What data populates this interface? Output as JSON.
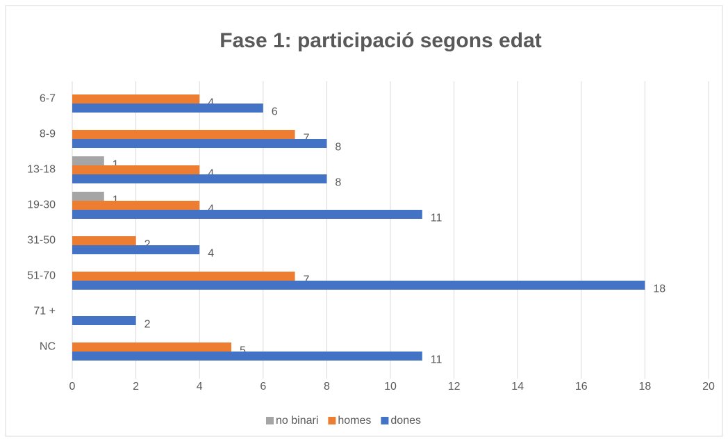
{
  "chart_data": {
    "type": "bar",
    "orientation": "horizontal",
    "title": "Fase 1: participació segons edat",
    "categories": [
      "6-7",
      "8-9",
      "13-18",
      "19-30",
      "31-50",
      "51-70",
      "71 +",
      "NC"
    ],
    "series": [
      {
        "name": "no binari",
        "color": "#a5a5a5",
        "values": [
          null,
          null,
          1,
          1,
          null,
          null,
          null,
          null
        ]
      },
      {
        "name": "homes",
        "color": "#ed7d31",
        "values": [
          4,
          7,
          4,
          4,
          2,
          7,
          null,
          5
        ]
      },
      {
        "name": "dones",
        "color": "#4472c4",
        "values": [
          6,
          8,
          8,
          11,
          4,
          18,
          2,
          11
        ]
      }
    ],
    "xlim": [
      0,
      20
    ],
    "xticks": [
      0,
      2,
      4,
      6,
      8,
      10,
      12,
      14,
      16,
      18,
      20
    ],
    "grid": true,
    "legend": "bottom"
  }
}
